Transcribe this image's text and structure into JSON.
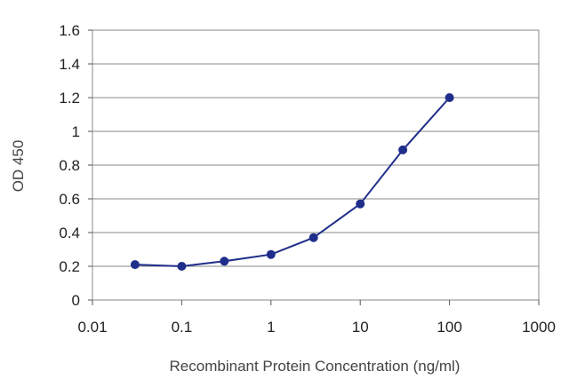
{
  "chart_data": {
    "type": "line",
    "title": "",
    "xlabel": "Recombinant Protein Concentration (ng/ml)",
    "ylabel": "OD 450",
    "x_scale": "log",
    "xlim": [
      0.01,
      1000
    ],
    "ylim": [
      0,
      1.6
    ],
    "grid": true,
    "legend": "none",
    "x_ticks": [
      "0.01",
      "0.1",
      "1",
      "10",
      "100",
      "1000"
    ],
    "y_ticks": [
      "0",
      "0.2",
      "0.4",
      "0.6",
      "0.8",
      "1",
      "1.2",
      "1.4",
      "1.6"
    ],
    "series": [
      {
        "color": "#1f2e8a",
        "x": [
          0.03,
          0.1,
          0.3,
          1,
          3,
          10,
          30,
          100
        ],
        "y": [
          0.21,
          0.2,
          0.23,
          0.27,
          0.37,
          0.57,
          0.89,
          1.2
        ]
      }
    ]
  }
}
